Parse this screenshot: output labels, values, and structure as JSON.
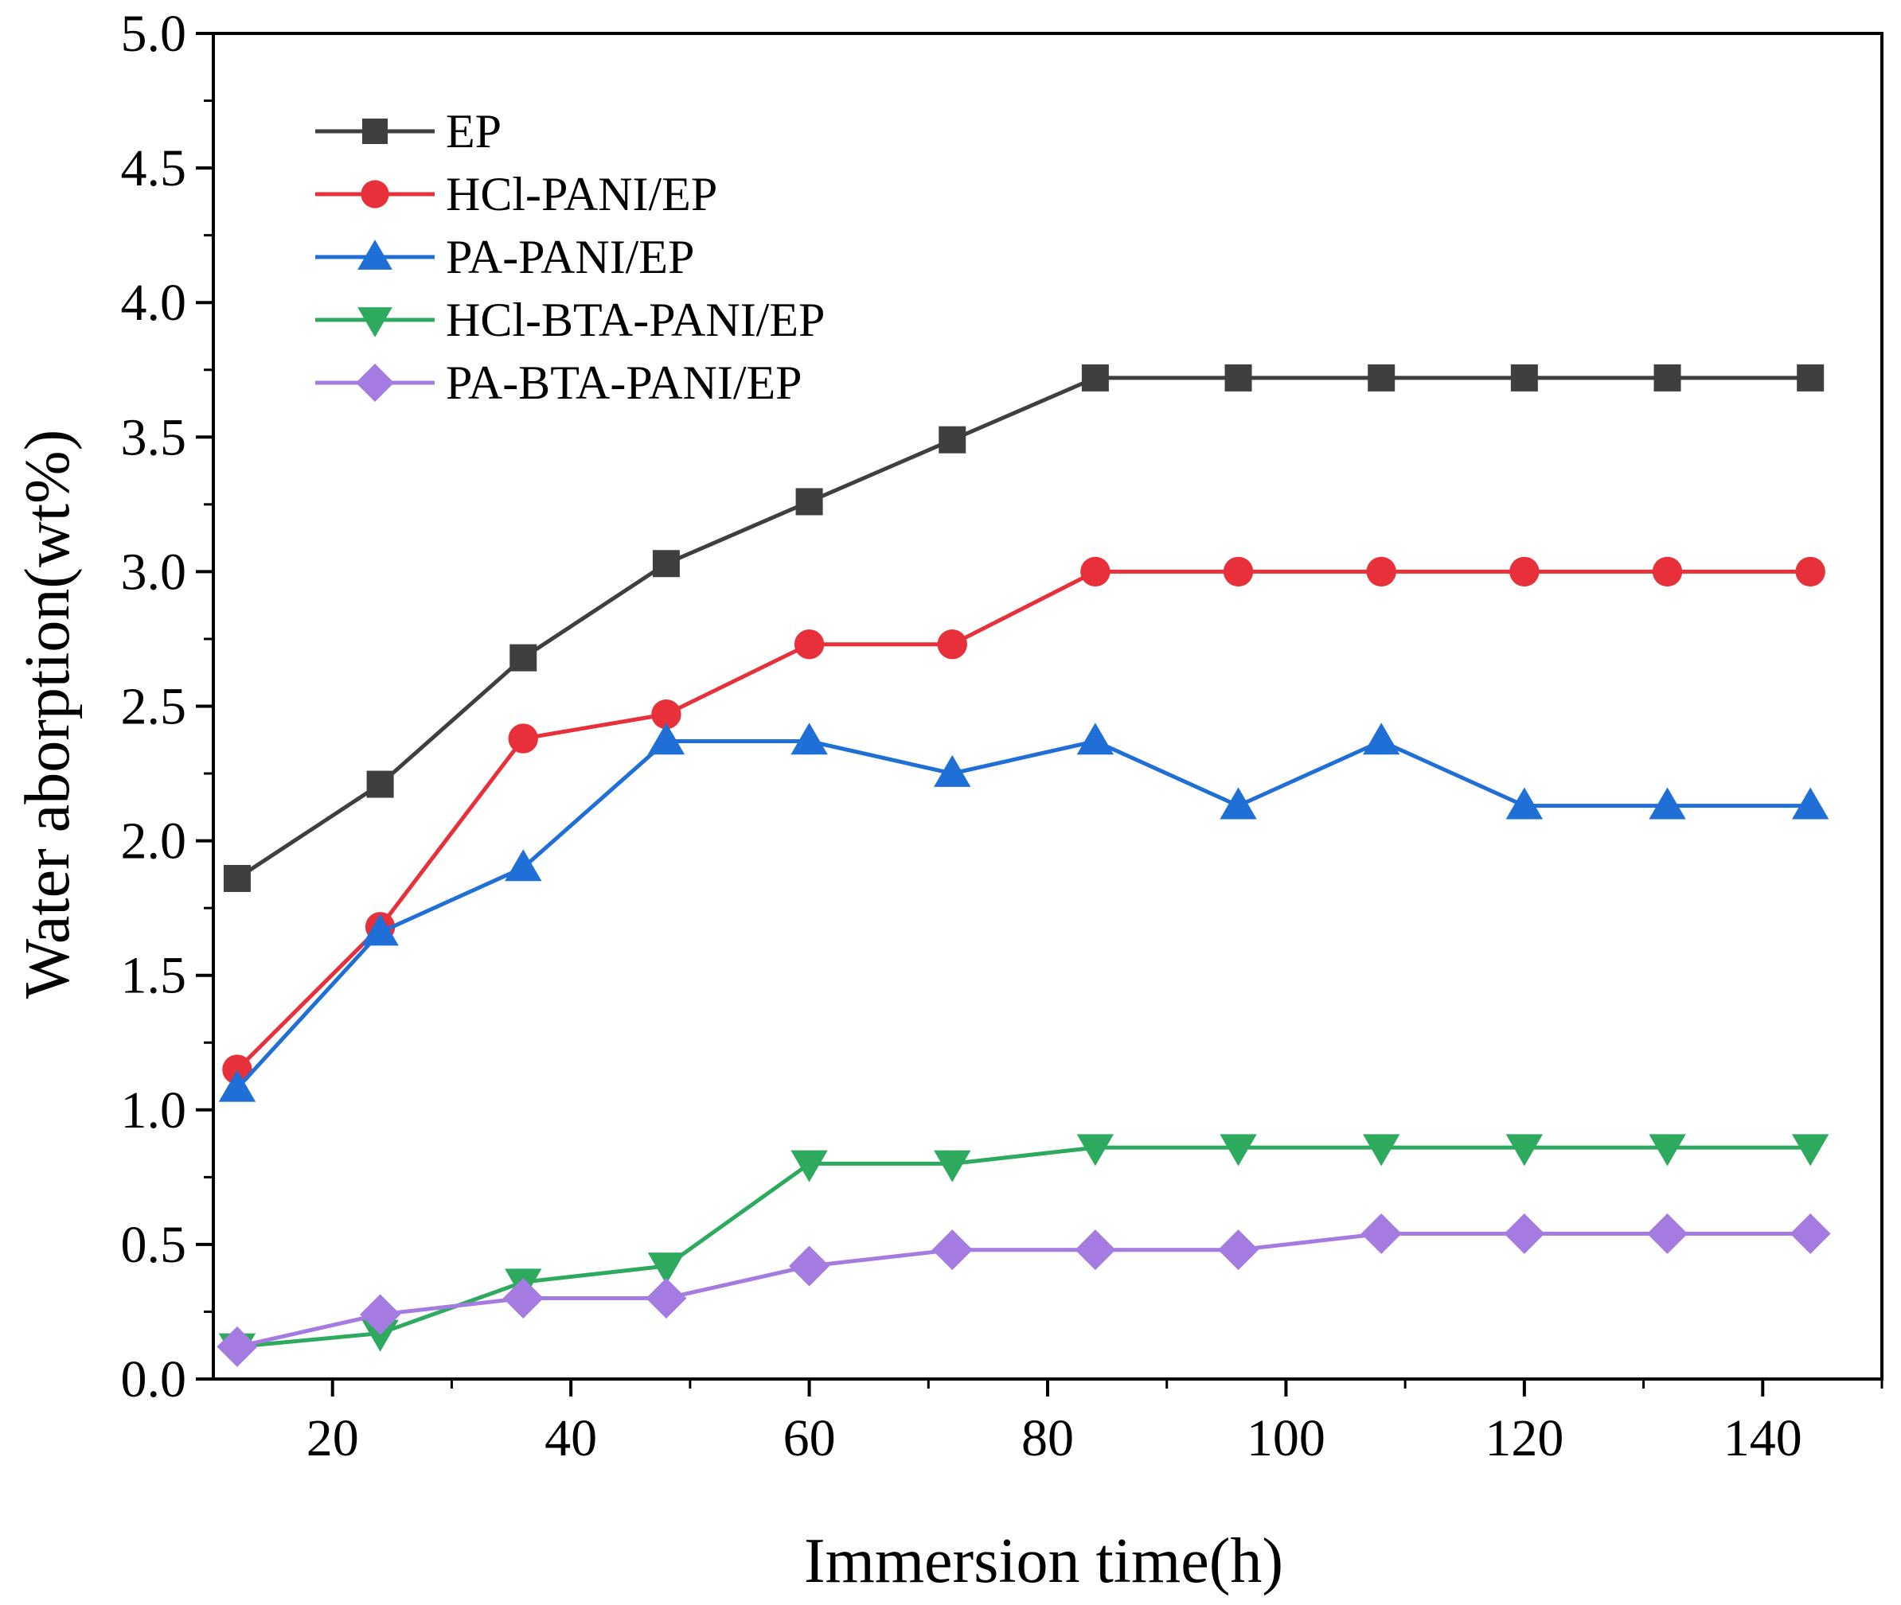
{
  "chart_data": {
    "type": "line",
    "title": "",
    "xlabel": "Immersion time(h)",
    "ylabel": "Water aborption(wt%)",
    "xlim": [
      10,
      150
    ],
    "ylim": [
      0.0,
      5.0
    ],
    "x_ticks": [
      20,
      40,
      60,
      80,
      100,
      120,
      140
    ],
    "x_tick_labels": [
      "20",
      "40",
      "60",
      "80",
      "100",
      "120",
      "140"
    ],
    "y_ticks": [
      0.0,
      0.5,
      1.0,
      1.5,
      2.0,
      2.5,
      3.0,
      3.5,
      4.0,
      4.5,
      5.0
    ],
    "y_tick_labels": [
      "0.0",
      "0.5",
      "1.0",
      "1.5",
      "2.0",
      "2.5",
      "3.0",
      "3.5",
      "4.0",
      "4.5",
      "5.0"
    ],
    "grid": false,
    "legend_position": "top-left",
    "x": [
      12,
      24,
      36,
      48,
      60,
      72,
      84,
      96,
      108,
      120,
      132,
      144
    ],
    "series": [
      {
        "name": "EP",
        "color": "#3f3f3f",
        "marker": "square",
        "values": [
          1.86,
          2.21,
          2.68,
          3.03,
          3.26,
          3.49,
          3.72,
          3.72,
          3.72,
          3.72,
          3.72,
          3.72
        ]
      },
      {
        "name": "HCl-PANI/EP",
        "color": "#e8303a",
        "marker": "circle",
        "values": [
          1.15,
          1.68,
          2.38,
          2.47,
          2.73,
          2.73,
          3.0,
          3.0,
          3.0,
          3.0,
          3.0,
          3.0
        ]
      },
      {
        "name": "PA-PANI/EP",
        "color": "#1f6fd6",
        "marker": "triangle-up",
        "values": [
          1.08,
          1.66,
          1.9,
          2.37,
          2.37,
          2.25,
          2.37,
          2.13,
          2.37,
          2.13,
          2.13,
          2.13
        ]
      },
      {
        "name": "HCl-BTA-PANI/EP",
        "color": "#2eaa5f",
        "marker": "triangle-down",
        "values": [
          0.12,
          0.17,
          0.36,
          0.42,
          0.8,
          0.8,
          0.86,
          0.86,
          0.86,
          0.86,
          0.86,
          0.86
        ]
      },
      {
        "name": "PA-BTA-PANI/EP",
        "color": "#a47be0",
        "marker": "diamond",
        "values": [
          0.12,
          0.24,
          0.3,
          0.3,
          0.42,
          0.48,
          0.48,
          0.48,
          0.54,
          0.54,
          0.54,
          0.54
        ]
      }
    ]
  }
}
